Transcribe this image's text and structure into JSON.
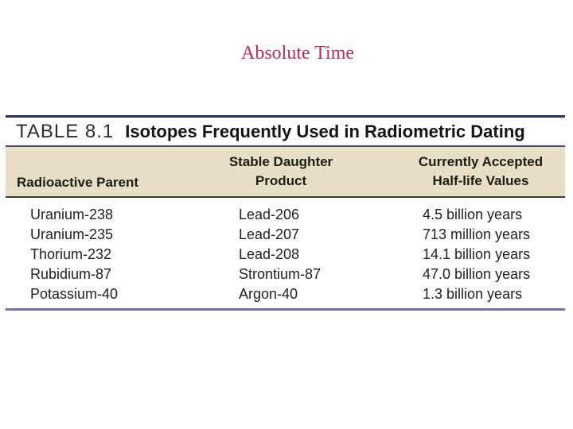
{
  "slide": {
    "title": "Absolute Time"
  },
  "table": {
    "label": "TABLE 8.1",
    "heading": "Isotopes Frequently Used in Radiometric Dating",
    "header": {
      "col1": "Radioactive Parent",
      "col2_line1": "Stable Daughter",
      "col2_line2": "Product",
      "col3_line1": "Currently Accepted",
      "col3_line2": "Half-life Values"
    },
    "rows": [
      {
        "parent": "Uranium-238",
        "daughter": "Lead-206",
        "half_life": "4.5 billion years"
      },
      {
        "parent": "Uranium-235",
        "daughter": "Lead-207",
        "half_life": "713 million years"
      },
      {
        "parent": "Thorium-232",
        "daughter": "Lead-208",
        "half_life": "14.1 billion years"
      },
      {
        "parent": "Rubidium-87",
        "daughter": "Strontium-87",
        "half_life": "47.0 billion years"
      },
      {
        "parent": "Potassium-40",
        "daughter": "Argon-40",
        "half_life": "1.3 billion years"
      }
    ]
  },
  "colors": {
    "slide-bg": "#ffffff",
    "title-color": "#c22a60",
    "rule-navy": "#2d3060",
    "rule-mid": "#3f4380",
    "rule-slate": "#73769b",
    "rule-dark": "#3e3c30",
    "header-bg": "#e7dec6",
    "text-dark": "#1f1f1f"
  }
}
